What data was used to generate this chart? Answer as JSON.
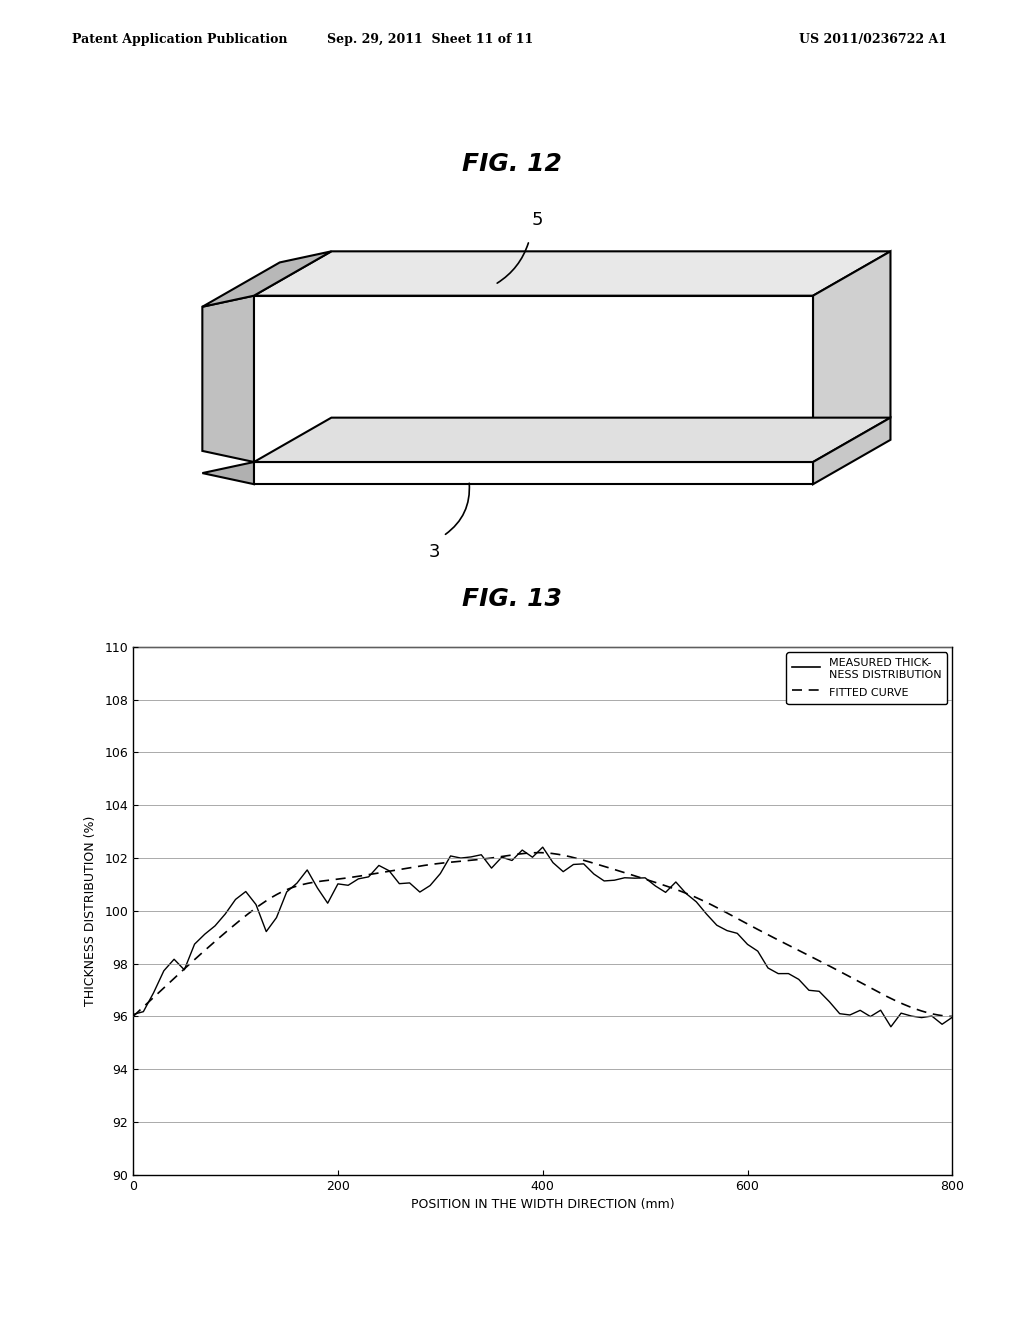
{
  "background_color": "#ffffff",
  "header_left": "Patent Application Publication",
  "header_center": "Sep. 29, 2011  Sheet 11 of 11",
  "header_right": "US 2011/0236722 A1",
  "fig12_title": "FIG. 12",
  "fig13_title": "FIG. 13",
  "label_5": "5",
  "label_3": "3",
  "xlabel": "POSITION IN THE WIDTH DIRECTION (mm)",
  "ylabel": "THICKNESS DISTRIBUTION (%)",
  "xlim": [
    0,
    800
  ],
  "ylim": [
    90,
    110
  ],
  "xticks": [
    0,
    200,
    400,
    600,
    800
  ],
  "yticks": [
    90,
    92,
    94,
    96,
    98,
    100,
    102,
    104,
    106,
    108,
    110
  ],
  "legend_line1_label": "MEASURED THICK-\nNESS DISTRIBUTION",
  "legend_line2_label": "FITTED CURVE",
  "measured_x": [
    0,
    10,
    20,
    30,
    40,
    50,
    60,
    70,
    80,
    90,
    100,
    110,
    120,
    130,
    140,
    150,
    160,
    170,
    180,
    190,
    200,
    210,
    220,
    230,
    240,
    250,
    260,
    270,
    280,
    290,
    300,
    310,
    320,
    330,
    340,
    350,
    360,
    370,
    380,
    390,
    400,
    410,
    420,
    430,
    440,
    450,
    460,
    470,
    480,
    490,
    500,
    510,
    520,
    530,
    540,
    550,
    560,
    570,
    580,
    590,
    600,
    610,
    620,
    630,
    640,
    650,
    660,
    670,
    680,
    690,
    700,
    710,
    720,
    730,
    740,
    750,
    760,
    770,
    780,
    790,
    800
  ],
  "measured_y": [
    96.0,
    96.2,
    96.8,
    97.5,
    98.2,
    97.8,
    98.5,
    99.0,
    99.5,
    99.8,
    100.5,
    100.8,
    100.2,
    99.5,
    100.0,
    100.8,
    101.2,
    101.5,
    101.0,
    100.5,
    100.8,
    101.0,
    101.2,
    101.5,
    101.8,
    101.5,
    101.2,
    101.0,
    100.8,
    101.0,
    101.5,
    101.8,
    102.0,
    102.2,
    102.0,
    101.8,
    102.0,
    102.2,
    102.5,
    102.0,
    102.3,
    101.8,
    101.5,
    101.8,
    102.0,
    101.5,
    101.2,
    101.0,
    101.2,
    101.5,
    101.2,
    101.0,
    100.8,
    101.0,
    100.5,
    100.2,
    100.0,
    99.5,
    99.2,
    99.0,
    98.8,
    98.5,
    98.0,
    97.8,
    97.5,
    97.2,
    97.0,
    96.8,
    96.5,
    96.2,
    96.0,
    96.0,
    96.0,
    96.0,
    96.0,
    96.0,
    96.0,
    96.0,
    96.0,
    96.0,
    96.0
  ],
  "fitted_x": [
    0,
    50,
    100,
    150,
    200,
    250,
    300,
    350,
    400,
    450,
    500,
    550,
    600,
    650,
    700,
    750,
    800
  ],
  "fitted_y": [
    96.0,
    97.8,
    99.5,
    100.8,
    101.2,
    101.5,
    101.8,
    102.0,
    102.2,
    101.8,
    101.2,
    100.5,
    99.5,
    98.5,
    97.5,
    96.5,
    96.0
  ]
}
